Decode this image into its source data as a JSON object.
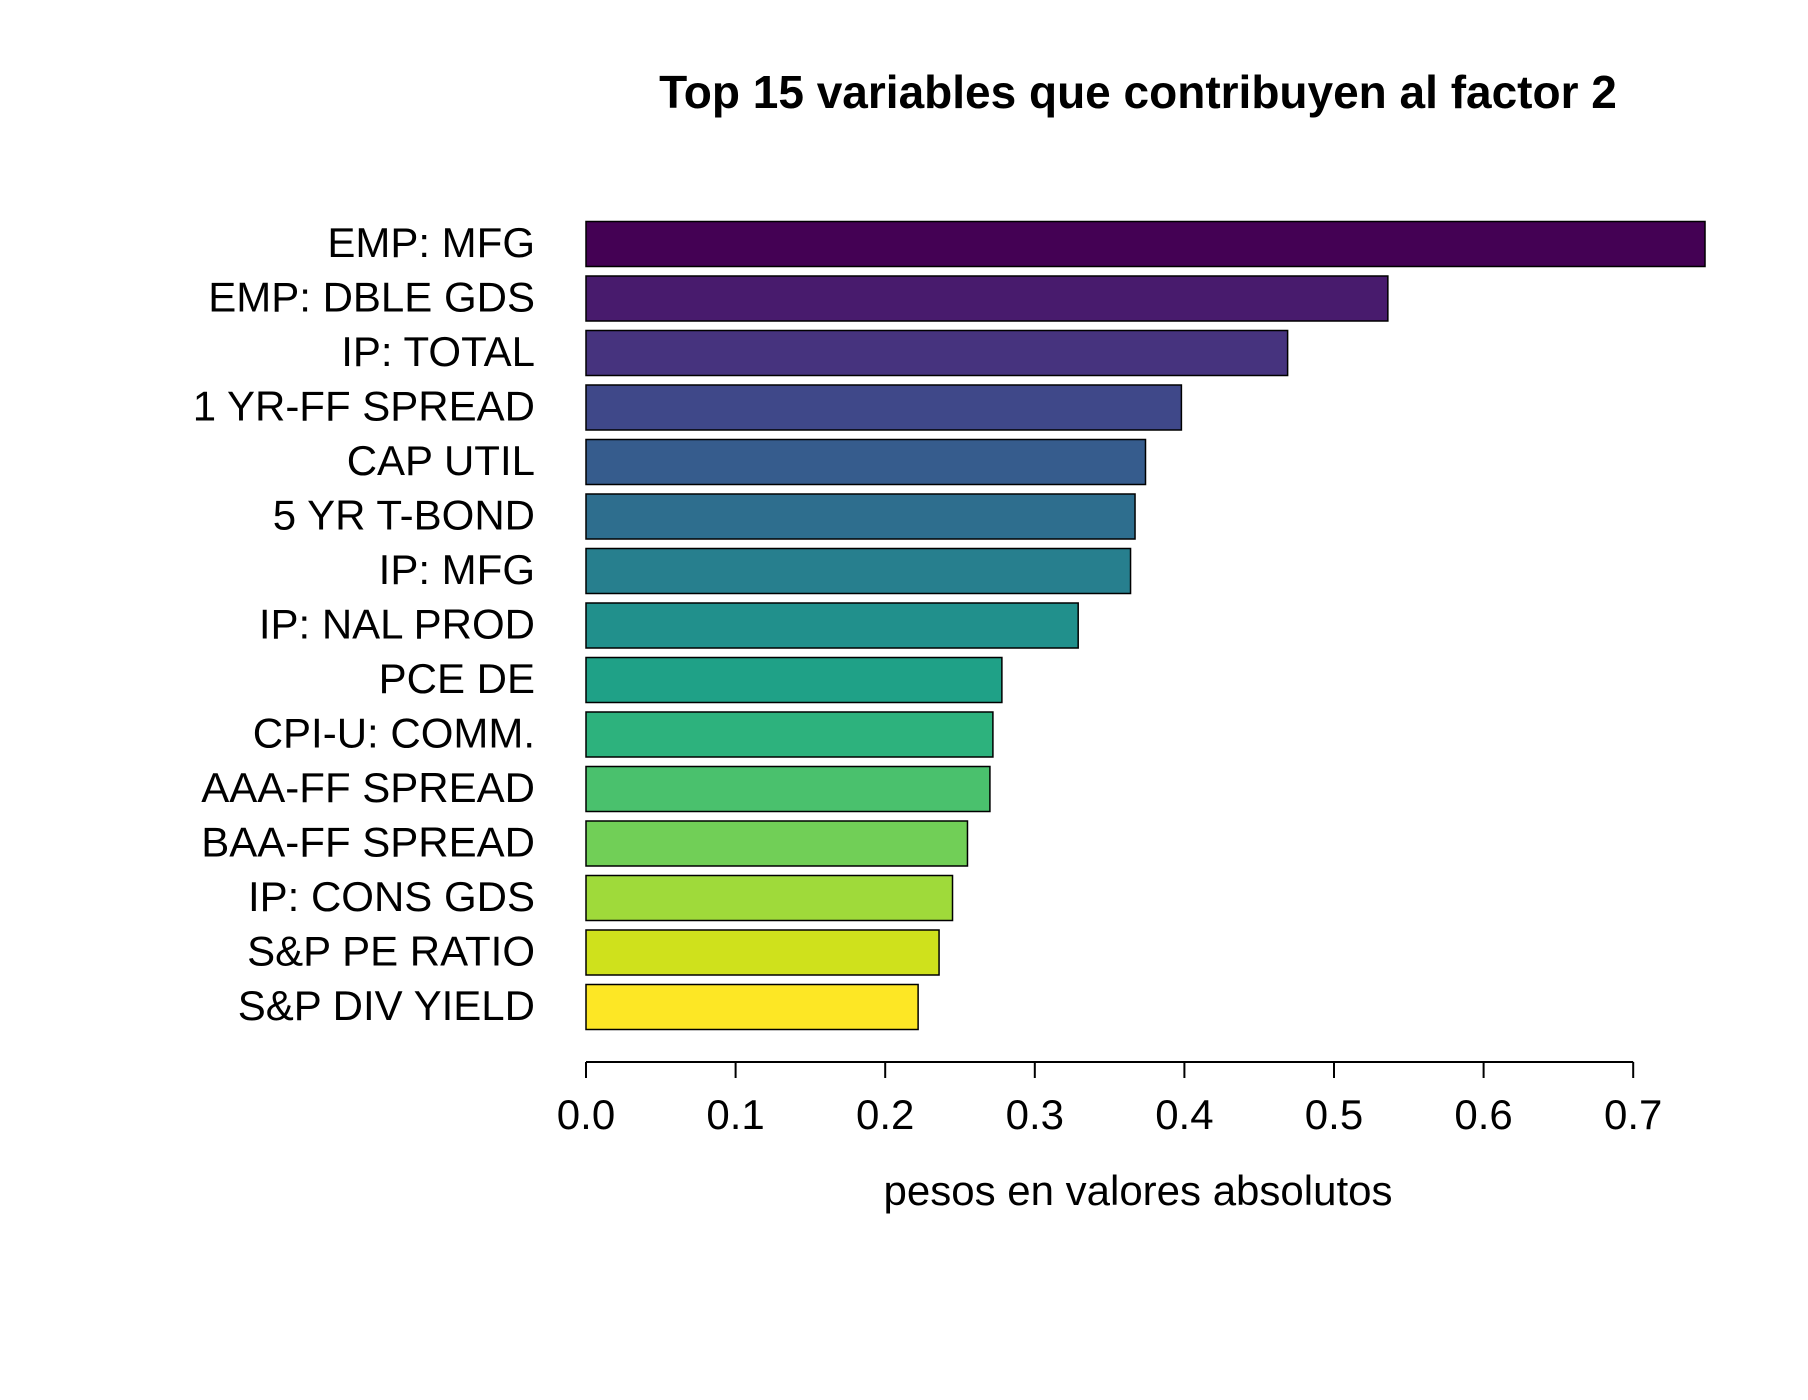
{
  "chart_data": {
    "type": "barh",
    "title": "Top 15 variables que contribuyen al factor 2",
    "x_label": "pesos en valores absolutos",
    "categories": [
      "EMP: MFG",
      "EMP: DBLE GDS",
      "IP: TOTAL",
      "1 YR-FF SPREAD",
      "CAP UTIL",
      "5 YR T-BOND",
      "IP: MFG",
      "IP: NAL PROD",
      "PCE DE",
      "CPI-U: COMM.",
      "AAA-FF SPREAD",
      "BAA-FF SPREAD",
      "IP: CONS GDS",
      "S&P PE RATIO",
      "S&P DIV YIELD"
    ],
    "values": [
      0.748,
      0.536,
      0.469,
      0.398,
      0.374,
      0.367,
      0.364,
      0.329,
      0.278,
      0.272,
      0.27,
      0.255,
      0.245,
      0.236,
      0.222
    ],
    "colors": [
      "#440154",
      "#481B6D",
      "#46337E",
      "#3F4889",
      "#365C8D",
      "#2E6E8E",
      "#277F8E",
      "#21908C",
      "#1FA187",
      "#2DB27D",
      "#4AC16D",
      "#71CF57",
      "#9FDA3A",
      "#CFE11C",
      "#FDE725"
    ],
    "xlim": [
      0,
      0.75
    ],
    "xticks": [
      {
        "value": 0,
        "label": "0.0"
      },
      0.1,
      0.2,
      0.3,
      0.4,
      0.5,
      0.6,
      0.7
    ],
    "grid": false
  }
}
